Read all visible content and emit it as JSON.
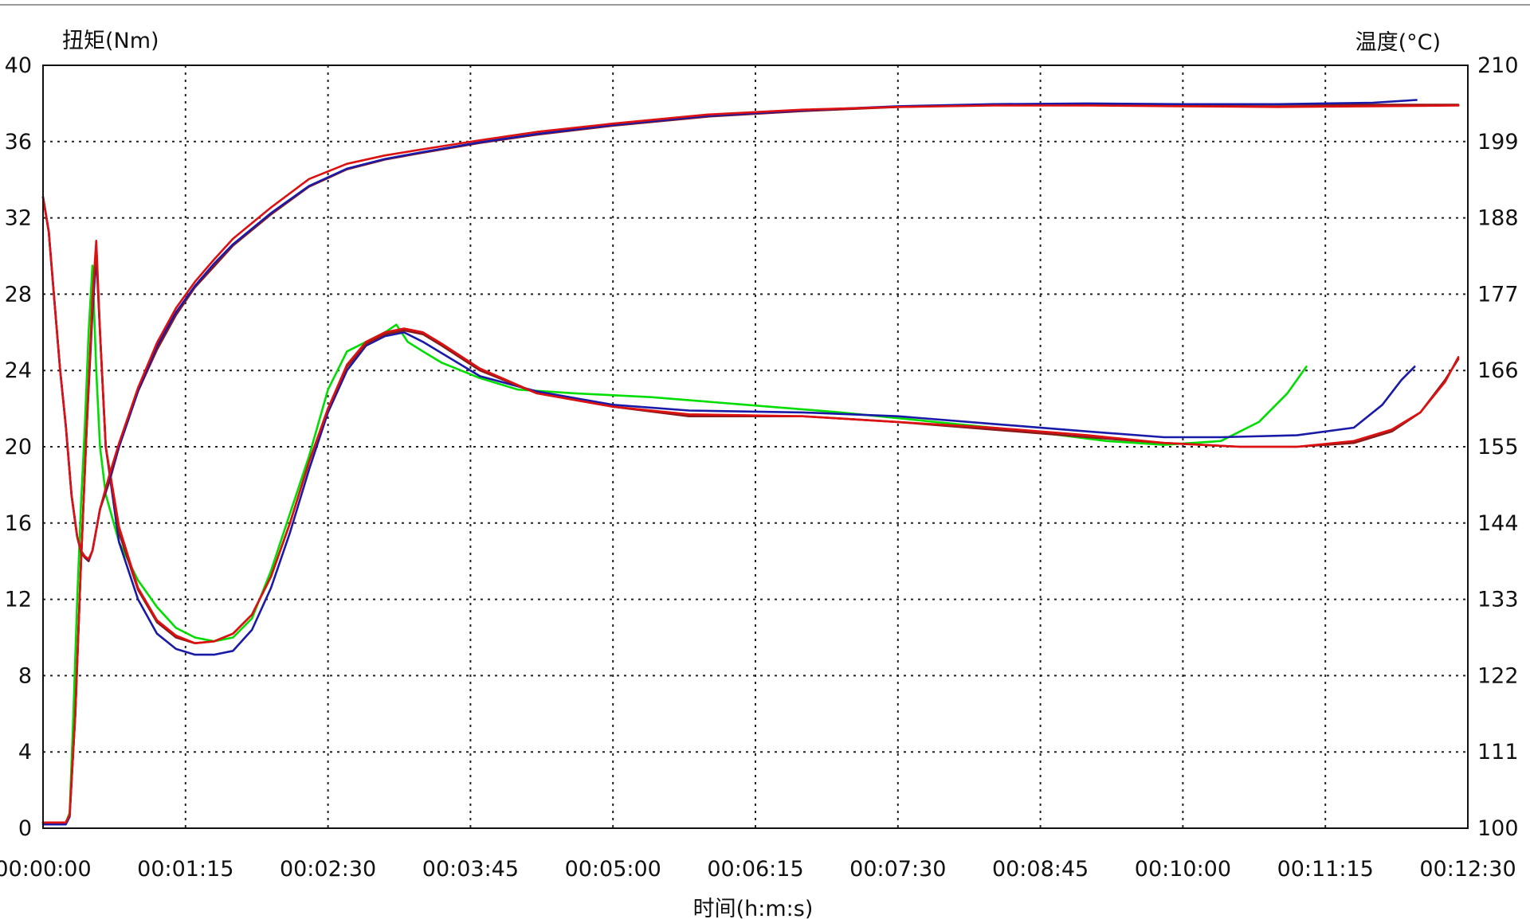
{
  "chart_data": {
    "type": "line",
    "title": "",
    "y_left_label": "扭矩(Nm)",
    "y_right_label": "温度(°C)",
    "xlabel": "时间(h:m:s)",
    "x_ticks": [
      "00:00:00",
      "00:01:15",
      "00:02:30",
      "00:03:45",
      "00:05:00",
      "00:06:15",
      "00:07:30",
      "00:08:45",
      "00:10:00",
      "00:11:15",
      "00:12:30"
    ],
    "y_left_ticks": [
      "0",
      "4",
      "8",
      "12",
      "16",
      "20",
      "24",
      "28",
      "32",
      "36",
      "40"
    ],
    "y_right_ticks": [
      "100",
      "111",
      "122",
      "133",
      "144",
      "155",
      "166",
      "177",
      "188",
      "199",
      "210"
    ],
    "x_unit": "seconds",
    "xlim": [
      0,
      750
    ],
    "ylim_left": [
      0,
      40
    ],
    "ylim_right": [
      100,
      210
    ],
    "grid": true,
    "series": [
      {
        "axis": "left",
        "kind": "torque",
        "color": "#00dd00",
        "points": [
          [
            0,
            0.3
          ],
          [
            12,
            0.3
          ],
          [
            14,
            0.8
          ],
          [
            16,
            6
          ],
          [
            18,
            12
          ],
          [
            20,
            17
          ],
          [
            22,
            21
          ],
          [
            24,
            26
          ],
          [
            26,
            29.5
          ],
          [
            28,
            24
          ],
          [
            30,
            20
          ],
          [
            33,
            17.5
          ],
          [
            40,
            15
          ],
          [
            50,
            13
          ],
          [
            60,
            11.6
          ],
          [
            70,
            10.5
          ],
          [
            80,
            10
          ],
          [
            90,
            9.8
          ],
          [
            100,
            10
          ],
          [
            110,
            11
          ],
          [
            120,
            13.5
          ],
          [
            130,
            16.5
          ],
          [
            140,
            19.5
          ],
          [
            150,
            23
          ],
          [
            160,
            25
          ],
          [
            170,
            25.5
          ],
          [
            180,
            26
          ],
          [
            186,
            26.4
          ],
          [
            192,
            25.5
          ],
          [
            200,
            25
          ],
          [
            210,
            24.4
          ],
          [
            230,
            23.6
          ],
          [
            250,
            23
          ],
          [
            280,
            22.8
          ],
          [
            320,
            22.6
          ],
          [
            370,
            22.2
          ],
          [
            420,
            21.8
          ],
          [
            470,
            21.3
          ],
          [
            520,
            20.8
          ],
          [
            560,
            20.3
          ],
          [
            590,
            20.1
          ],
          [
            620,
            20.3
          ],
          [
            640,
            21.3
          ],
          [
            655,
            22.8
          ],
          [
            665,
            24.2
          ]
        ]
      },
      {
        "axis": "left",
        "kind": "torque",
        "color": "#1a1aa8",
        "points": [
          [
            0,
            0.2
          ],
          [
            12,
            0.2
          ],
          [
            14,
            0.6
          ],
          [
            17,
            6
          ],
          [
            20,
            14
          ],
          [
            23,
            21
          ],
          [
            26,
            27
          ],
          [
            28,
            30
          ],
          [
            30,
            26
          ],
          [
            33,
            20
          ],
          [
            40,
            15
          ],
          [
            50,
            12
          ],
          [
            60,
            10.2
          ],
          [
            70,
            9.4
          ],
          [
            80,
            9.1
          ],
          [
            90,
            9.1
          ],
          [
            100,
            9.3
          ],
          [
            110,
            10.4
          ],
          [
            120,
            12.6
          ],
          [
            130,
            15.5
          ],
          [
            140,
            18.8
          ],
          [
            150,
            21.8
          ],
          [
            160,
            24
          ],
          [
            170,
            25.3
          ],
          [
            180,
            25.8
          ],
          [
            190,
            26
          ],
          [
            200,
            25.5
          ],
          [
            210,
            24.9
          ],
          [
            230,
            23.7
          ],
          [
            260,
            22.9
          ],
          [
            300,
            22.2
          ],
          [
            340,
            21.9
          ],
          [
            400,
            21.8
          ],
          [
            450,
            21.6
          ],
          [
            500,
            21.2
          ],
          [
            550,
            20.8
          ],
          [
            590,
            20.5
          ],
          [
            620,
            20.5
          ],
          [
            660,
            20.6
          ],
          [
            690,
            21
          ],
          [
            705,
            22.2
          ],
          [
            715,
            23.5
          ],
          [
            722,
            24.2
          ]
        ]
      },
      {
        "axis": "left",
        "kind": "torque",
        "color": "#8b1a1a",
        "points": [
          [
            0,
            0.3
          ],
          [
            12,
            0.3
          ],
          [
            14,
            0.7
          ],
          [
            17,
            6
          ],
          [
            20,
            14
          ],
          [
            23,
            21
          ],
          [
            26,
            27.5
          ],
          [
            28,
            30.5
          ],
          [
            30,
            26
          ],
          [
            33,
            20
          ],
          [
            40,
            15.5
          ],
          [
            50,
            12.5
          ],
          [
            60,
            10.8
          ],
          [
            70,
            10
          ],
          [
            80,
            9.7
          ],
          [
            90,
            9.8
          ],
          [
            100,
            10.2
          ],
          [
            110,
            11.2
          ],
          [
            120,
            13.2
          ],
          [
            130,
            16
          ],
          [
            140,
            19.2
          ],
          [
            150,
            22
          ],
          [
            160,
            24.2
          ],
          [
            170,
            25.4
          ],
          [
            180,
            25.9
          ],
          [
            190,
            26.1
          ],
          [
            200,
            25.9
          ],
          [
            210,
            25.3
          ],
          [
            230,
            24
          ],
          [
            260,
            22.8
          ],
          [
            300,
            22.1
          ],
          [
            340,
            21.6
          ],
          [
            400,
            21.6
          ],
          [
            450,
            21.3
          ],
          [
            500,
            20.9
          ],
          [
            550,
            20.5
          ],
          [
            590,
            20.2
          ],
          [
            630,
            20
          ],
          [
            660,
            20
          ],
          [
            690,
            20.2
          ],
          [
            710,
            20.8
          ],
          [
            725,
            21.8
          ],
          [
            738,
            23.5
          ],
          [
            745,
            24.6
          ]
        ]
      },
      {
        "axis": "left",
        "kind": "torque",
        "color": "#dd1111",
        "points": [
          [
            0,
            0.3
          ],
          [
            12,
            0.3
          ],
          [
            14,
            0.7
          ],
          [
            17,
            6
          ],
          [
            20,
            14
          ],
          [
            23,
            21
          ],
          [
            26,
            27.8
          ],
          [
            28,
            30.8
          ],
          [
            30,
            26
          ],
          [
            33,
            20
          ],
          [
            40,
            15.8
          ],
          [
            50,
            12.6
          ],
          [
            60,
            10.9
          ],
          [
            70,
            10.1
          ],
          [
            80,
            9.7
          ],
          [
            90,
            9.8
          ],
          [
            100,
            10.2
          ],
          [
            110,
            11.2
          ],
          [
            120,
            13.2
          ],
          [
            130,
            16
          ],
          [
            140,
            19.2
          ],
          [
            150,
            22
          ],
          [
            160,
            24.3
          ],
          [
            170,
            25.5
          ],
          [
            180,
            26
          ],
          [
            190,
            26.2
          ],
          [
            200,
            26
          ],
          [
            210,
            25.4
          ],
          [
            230,
            24.1
          ],
          [
            260,
            22.8
          ],
          [
            300,
            22.1
          ],
          [
            340,
            21.7
          ],
          [
            400,
            21.6
          ],
          [
            450,
            21.3
          ],
          [
            500,
            21
          ],
          [
            550,
            20.6
          ],
          [
            590,
            20.2
          ],
          [
            630,
            20
          ],
          [
            660,
            20
          ],
          [
            690,
            20.3
          ],
          [
            710,
            20.9
          ],
          [
            725,
            21.8
          ],
          [
            738,
            23.4
          ],
          [
            745,
            24.7
          ]
        ]
      },
      {
        "axis": "right",
        "kind": "temperature",
        "color": "#8b1a1a",
        "points": [
          [
            0,
            191
          ],
          [
            3,
            186
          ],
          [
            6,
            176
          ],
          [
            9,
            166
          ],
          [
            12,
            158
          ],
          [
            15,
            148
          ],
          [
            18,
            142
          ],
          [
            20,
            139.8
          ],
          [
            22,
            139
          ],
          [
            24,
            138.5
          ],
          [
            26,
            140
          ],
          [
            28,
            143
          ],
          [
            30,
            146
          ],
          [
            35,
            150
          ],
          [
            40,
            155
          ],
          [
            50,
            163
          ],
          [
            60,
            169
          ],
          [
            70,
            174
          ],
          [
            80,
            178
          ],
          [
            90,
            181
          ],
          [
            100,
            184
          ],
          [
            120,
            188.5
          ],
          [
            140,
            192.5
          ],
          [
            160,
            195
          ],
          [
            180,
            196.4
          ],
          [
            200,
            197.4
          ],
          [
            230,
            198.8
          ],
          [
            260,
            200
          ],
          [
            300,
            201.3
          ],
          [
            350,
            202.6
          ],
          [
            400,
            203.4
          ],
          [
            450,
            204
          ],
          [
            500,
            204.3
          ],
          [
            550,
            204.4
          ],
          [
            600,
            204.3
          ],
          [
            650,
            204.3
          ],
          [
            700,
            204.3
          ],
          [
            745,
            204.3
          ]
        ]
      },
      {
        "axis": "right",
        "kind": "temperature",
        "color": "#1a1aa8",
        "points": [
          [
            0,
            191
          ],
          [
            3,
            186
          ],
          [
            6,
            176
          ],
          [
            9,
            166
          ],
          [
            12,
            158
          ],
          [
            15,
            148
          ],
          [
            18,
            142
          ],
          [
            20,
            140
          ],
          [
            22,
            139.2
          ],
          [
            24,
            138.7
          ],
          [
            26,
            140
          ],
          [
            28,
            143
          ],
          [
            30,
            146
          ],
          [
            35,
            150.5
          ],
          [
            40,
            155
          ],
          [
            50,
            163
          ],
          [
            60,
            169.5
          ],
          [
            70,
            174.4
          ],
          [
            80,
            178.2
          ],
          [
            90,
            181.4
          ],
          [
            100,
            184.2
          ],
          [
            120,
            188.7
          ],
          [
            140,
            192.6
          ],
          [
            160,
            195.1
          ],
          [
            180,
            196.5
          ],
          [
            200,
            197.5
          ],
          [
            230,
            198.9
          ],
          [
            260,
            200.1
          ],
          [
            300,
            201.4
          ],
          [
            350,
            202.7
          ],
          [
            400,
            203.5
          ],
          [
            450,
            204.1
          ],
          [
            500,
            204.4
          ],
          [
            550,
            204.5
          ],
          [
            600,
            204.4
          ],
          [
            650,
            204.4
          ],
          [
            700,
            204.6
          ],
          [
            723,
            205
          ]
        ]
      },
      {
        "axis": "right",
        "kind": "temperature",
        "color": "#dd1111",
        "points": [
          [
            0,
            191
          ],
          [
            3,
            186
          ],
          [
            6,
            176
          ],
          [
            9,
            166
          ],
          [
            12,
            158
          ],
          [
            15,
            148
          ],
          [
            18,
            142
          ],
          [
            20,
            140
          ],
          [
            22,
            139.2
          ],
          [
            24,
            138.8
          ],
          [
            26,
            140
          ],
          [
            28,
            143
          ],
          [
            30,
            146
          ],
          [
            35,
            151
          ],
          [
            40,
            155.5
          ],
          [
            50,
            163.5
          ],
          [
            60,
            170
          ],
          [
            70,
            175
          ],
          [
            80,
            178.8
          ],
          [
            90,
            182
          ],
          [
            100,
            185
          ],
          [
            120,
            189.5
          ],
          [
            140,
            193.6
          ],
          [
            160,
            195.8
          ],
          [
            180,
            197
          ],
          [
            200,
            197.9
          ],
          [
            230,
            199.2
          ],
          [
            260,
            200.4
          ],
          [
            300,
            201.6
          ],
          [
            350,
            202.9
          ],
          [
            400,
            203.6
          ],
          [
            450,
            204
          ],
          [
            500,
            204.2
          ],
          [
            550,
            204.2
          ],
          [
            600,
            204.1
          ],
          [
            650,
            204
          ],
          [
            700,
            204.1
          ],
          [
            745,
            204.2
          ]
        ]
      }
    ]
  }
}
